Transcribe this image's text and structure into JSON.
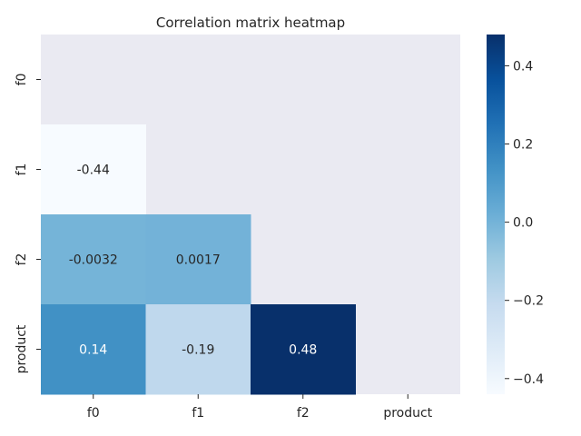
{
  "chart_data": {
    "type": "heatmap",
    "title": "Correlation matrix heatmap",
    "x_labels": [
      "f0",
      "f1",
      "f2",
      "product"
    ],
    "y_labels": [
      "f0",
      "f1",
      "f2",
      "product"
    ],
    "mask": "upper-triangle-including-diagonal",
    "cells": [
      {
        "row": "f1",
        "col": "f0",
        "value": -0.44,
        "label": "-0.44"
      },
      {
        "row": "f2",
        "col": "f0",
        "value": -0.0032,
        "label": "-0.0032"
      },
      {
        "row": "f2",
        "col": "f1",
        "value": 0.0017,
        "label": "0.0017"
      },
      {
        "row": "product",
        "col": "f0",
        "value": 0.14,
        "label": "0.14"
      },
      {
        "row": "product",
        "col": "f1",
        "value": -0.19,
        "label": "-0.19"
      },
      {
        "row": "product",
        "col": "f2",
        "value": 0.48,
        "label": "0.48"
      }
    ],
    "colorbar": {
      "colormap": "Blues",
      "vmin": -0.44,
      "vmax": 0.48,
      "ticks": [
        -0.4,
        -0.2,
        0.0,
        0.2,
        0.4
      ],
      "tick_labels": [
        "−0.4",
        "−0.2",
        "0.0",
        "0.2",
        "0.4"
      ]
    },
    "masked_color": "#eaeaf2",
    "xlabel": "",
    "ylabel": ""
  }
}
